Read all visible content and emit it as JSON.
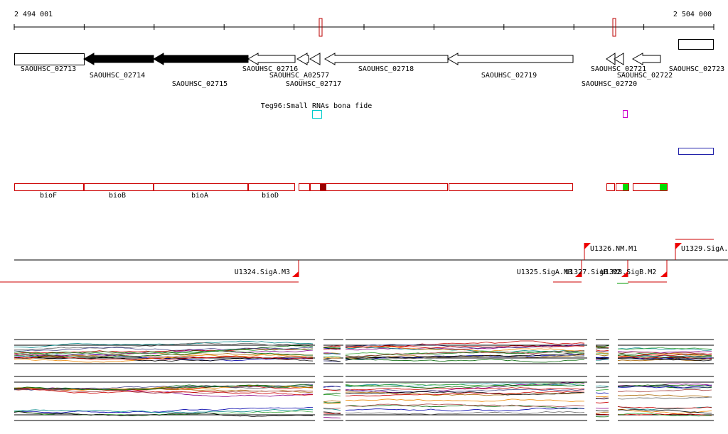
{
  "axis": {
    "start": "2 494 001",
    "end": "2 504 000"
  },
  "genes": [
    {
      "label": "SAOUHSC_02713"
    },
    {
      "label": "SAOUHSC_02714"
    },
    {
      "label": "SAOUHSC_02715"
    },
    {
      "label": "SAOUHSC_02716"
    },
    {
      "label": "SAOUHSC_A02577"
    },
    {
      "label": "SAOUHSC_02717"
    },
    {
      "label": "SAOUHSC_02718"
    },
    {
      "label": "SAOUHSC_02719"
    },
    {
      "label": "SAOUHSC_02720"
    },
    {
      "label": "SAOUHSC_02721"
    },
    {
      "label": "SAOUHSC_02722"
    },
    {
      "label": "SAOUHSC_02723"
    }
  ],
  "feature": {
    "label": "Teg96:Small RNAs bona fide"
  },
  "operons": [
    "bioF",
    "bioB",
    "bioA",
    "bioD"
  ],
  "promoters": [
    {
      "label": "U1324.SigA.M3"
    },
    {
      "label": "U1326.NM.M1"
    },
    {
      "label": "U1329.SigA."
    },
    {
      "label": "U1325.SigA.M3"
    },
    {
      "label": "U1327.SigB.M2"
    },
    {
      "label": "U1328.SigB.M2"
    }
  ]
}
